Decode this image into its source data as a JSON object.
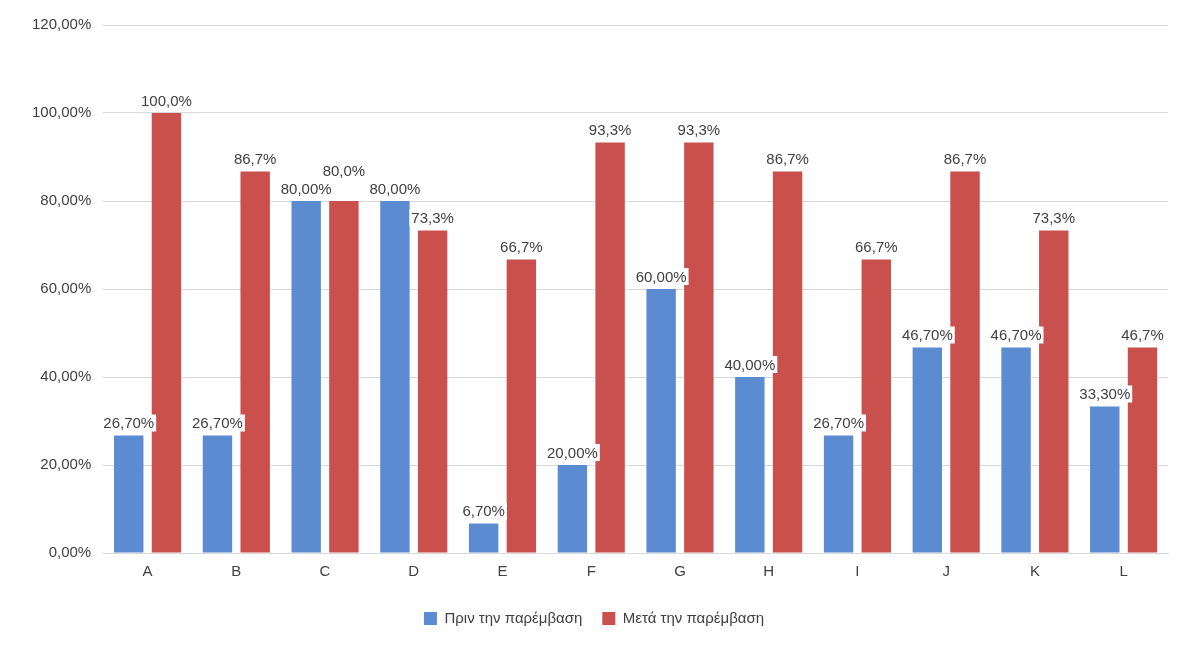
{
  "chart_data": {
    "type": "bar",
    "categories": [
      "A",
      "B",
      "C",
      "D",
      "E",
      "F",
      "G",
      "H",
      "I",
      "J",
      "K",
      "L"
    ],
    "series": [
      {
        "name": "Πριν την παρέμβαση",
        "color": "#5b8bd0",
        "values": [
          26.7,
          26.7,
          80,
          80,
          6.7,
          20,
          60,
          40,
          26.7,
          46.7,
          46.7,
          33.3
        ],
        "value_labels": [
          "26,70%",
          "26,70%",
          "80,00%",
          "80,00%",
          "6,70%",
          "20,00%",
          "60,00%",
          "40,00%",
          "26,70%",
          "46,70%",
          "46,70%",
          "33,30%"
        ]
      },
      {
        "name": "Μετά την παρέμβαση",
        "color": "#c9504d",
        "values": [
          100,
          86.7,
          80,
          73.3,
          66.7,
          93.3,
          93.3,
          86.7,
          66.7,
          86.7,
          73.3,
          46.7
        ],
        "value_labels": [
          "100,0%",
          "86,7%",
          "80,0%",
          "73,3%",
          "66,7%",
          "93,3%",
          "93,3%",
          "86,7%",
          "66,7%",
          "86,7%",
          "73,3%",
          "46,7%"
        ]
      }
    ],
    "ylim": [
      0,
      120
    ],
    "yticks": [
      {
        "value": 0,
        "label": "0,00%"
      },
      {
        "value": 20,
        "label": "20,00%"
      },
      {
        "value": 40,
        "label": "40,00%"
      },
      {
        "value": 60,
        "label": "60,00%"
      },
      {
        "value": 80,
        "label": "80,00%"
      },
      {
        "value": 100,
        "label": "100,00%"
      },
      {
        "value": 120,
        "label": "120,00%"
      }
    ],
    "grid": "y",
    "legend": "bottom"
  }
}
